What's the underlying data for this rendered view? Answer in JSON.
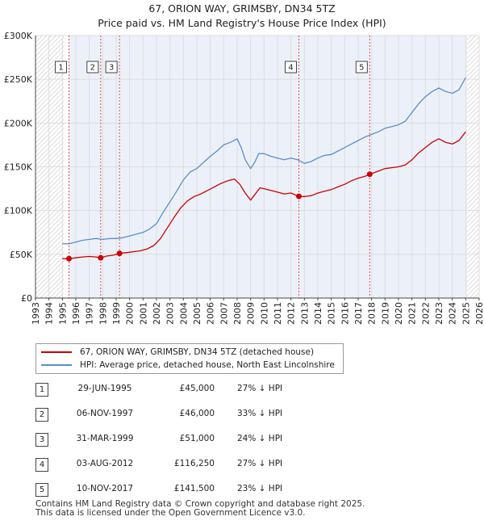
{
  "title": {
    "line1": "67, ORION WAY, GRIMSBY, DN34 5TZ",
    "line2": "Price paid vs. HM Land Registry's House Price Index (HPI)"
  },
  "colors": {
    "property": "#cc0000",
    "hpi": "#5b8dc9",
    "band": "#dce6f4",
    "grid": "#dddddd",
    "axis": "#444444",
    "vline": "#e05050"
  },
  "legend": {
    "property_label": "67, ORION WAY, GRIMSBY, DN34 5TZ (detached house)",
    "hpi_label": "HPI: Average price, detached house, North East Lincolnshire"
  },
  "sales": [
    {
      "num": "1",
      "date": "29-JUN-1995",
      "price": "£45,000",
      "hpi": "27% ↓ HPI"
    },
    {
      "num": "2",
      "date": "06-NOV-1997",
      "price": "£46,000",
      "hpi": "33% ↓ HPI"
    },
    {
      "num": "3",
      "date": "31-MAR-1999",
      "price": "£51,000",
      "hpi": "24% ↓ HPI"
    },
    {
      "num": "4",
      "date": "03-AUG-2012",
      "price": "£116,250",
      "hpi": "27% ↓ HPI"
    },
    {
      "num": "5",
      "date": "10-NOV-2017",
      "price": "£141,500",
      "hpi": "23% ↓ HPI"
    }
  ],
  "footer": {
    "line1": "Contains HM Land Registry data © Crown copyright and database right 2025.",
    "line2": "This data is licensed under the Open Government Licence v3.0."
  },
  "chart_data": {
    "type": "line",
    "title": "Price paid vs. HM Land Registry's House Price Index (HPI)",
    "xlabel": "",
    "ylabel": "",
    "xlim": [
      1993,
      2026
    ],
    "ylim": [
      0,
      300000
    ],
    "x_ticks": [
      1993,
      1994,
      1995,
      1996,
      1997,
      1998,
      1999,
      2000,
      2001,
      2002,
      2003,
      2004,
      2005,
      2006,
      2007,
      2008,
      2009,
      2010,
      2011,
      2012,
      2013,
      2014,
      2015,
      2016,
      2017,
      2018,
      2019,
      2020,
      2021,
      2022,
      2023,
      2024,
      2025,
      2026
    ],
    "y_ticks": [
      {
        "value": 0,
        "label": "£0"
      },
      {
        "value": 50000,
        "label": "£50K"
      },
      {
        "value": 100000,
        "label": "£100K"
      },
      {
        "value": 150000,
        "label": "£150K"
      },
      {
        "value": 200000,
        "label": "£200K"
      },
      {
        "value": 250000,
        "label": "£250K"
      },
      {
        "value": 300000,
        "label": "£300K"
      }
    ],
    "hatched_ranges": [
      [
        1993,
        1995.1
      ],
      [
        2025.1,
        2026
      ]
    ],
    "grid": true,
    "sale_markers": [
      {
        "label": "1",
        "x": 1995.49,
        "y": 45000
      },
      {
        "label": "2",
        "x": 1997.85,
        "y": 46000
      },
      {
        "label": "3",
        "x": 1999.25,
        "y": 51000
      },
      {
        "label": "4",
        "x": 2012.59,
        "y": 116250
      },
      {
        "label": "5",
        "x": 2017.86,
        "y": 141500
      }
    ],
    "series": [
      {
        "name": "HPI: Average price, detached house, North East Lincolnshire",
        "x": [
          1995.0,
          1995.5,
          1996.0,
          1996.5,
          1997.0,
          1997.5,
          1998.0,
          1998.5,
          1999.0,
          1999.5,
          2000.0,
          2000.5,
          2001.0,
          2001.5,
          2002.0,
          2002.5,
          2003.0,
          2003.5,
          2004.0,
          2004.5,
          2005.0,
          2005.5,
          2006.0,
          2006.5,
          2007.0,
          2007.5,
          2008.0,
          2008.3,
          2008.6,
          2009.0,
          2009.3,
          2009.6,
          2010.0,
          2010.5,
          2011.0,
          2011.5,
          2012.0,
          2012.5,
          2013.0,
          2013.5,
          2014.0,
          2014.5,
          2015.0,
          2015.5,
          2016.0,
          2016.5,
          2017.0,
          2017.5,
          2018.0,
          2018.5,
          2019.0,
          2019.5,
          2020.0,
          2020.5,
          2021.0,
          2021.5,
          2022.0,
          2022.5,
          2023.0,
          2023.5,
          2024.0,
          2024.5,
          2025.0
        ],
        "y": [
          62000,
          62000,
          64000,
          66000,
          67000,
          68000,
          67000,
          68000,
          68000,
          69000,
          71000,
          73000,
          75000,
          79000,
          85000,
          98000,
          110000,
          122000,
          135000,
          144000,
          148000,
          155000,
          162000,
          168000,
          175000,
          178000,
          182000,
          172000,
          158000,
          148000,
          155000,
          165000,
          165000,
          162000,
          160000,
          158000,
          160000,
          158000,
          154000,
          156000,
          160000,
          163000,
          164000,
          168000,
          172000,
          176000,
          180000,
          184000,
          187000,
          190000,
          194000,
          196000,
          198000,
          202000,
          212000,
          222000,
          230000,
          236000,
          240000,
          236000,
          234000,
          238000,
          252000
        ]
      },
      {
        "name": "67, ORION WAY, GRIMSBY, DN34 5TZ (detached house)",
        "x": [
          1995.0,
          1995.49,
          1996.0,
          1996.5,
          1997.0,
          1997.5,
          1997.85,
          1998.3,
          1998.8,
          1999.25,
          1999.8,
          2000.3,
          2000.8,
          2001.3,
          2001.8,
          2002.3,
          2002.8,
          2003.3,
          2003.8,
          2004.3,
          2004.8,
          2005.3,
          2005.8,
          2006.3,
          2006.8,
          2007.3,
          2007.8,
          2008.2,
          2008.6,
          2009.0,
          2009.3,
          2009.7,
          2010.0,
          2010.5,
          2011.0,
          2011.5,
          2012.0,
          2012.59,
          2013.0,
          2013.5,
          2014.0,
          2014.5,
          2015.0,
          2015.5,
          2016.0,
          2016.5,
          2017.0,
          2017.5,
          2017.86,
          2018.5,
          2019.0,
          2019.5,
          2020.0,
          2020.5,
          2021.0,
          2021.5,
          2022.0,
          2022.5,
          2023.0,
          2023.5,
          2024.0,
          2024.5,
          2025.0
        ],
        "y": [
          45000,
          45000,
          46000,
          47000,
          47500,
          47000,
          46000,
          48000,
          49000,
          51000,
          52000,
          53000,
          54000,
          56000,
          60000,
          68000,
          80000,
          92000,
          103000,
          111000,
          116000,
          119000,
          123000,
          127000,
          131000,
          134000,
          136000,
          130000,
          120000,
          112000,
          118000,
          126000,
          125000,
          123000,
          121000,
          119000,
          120000,
          116250,
          116000,
          117000,
          120000,
          122000,
          124000,
          127000,
          130000,
          134000,
          137000,
          139000,
          141500,
          145000,
          148000,
          149000,
          150000,
          152000,
          158000,
          166000,
          172000,
          178000,
          182000,
          178000,
          176000,
          180000,
          190000
        ]
      }
    ]
  }
}
